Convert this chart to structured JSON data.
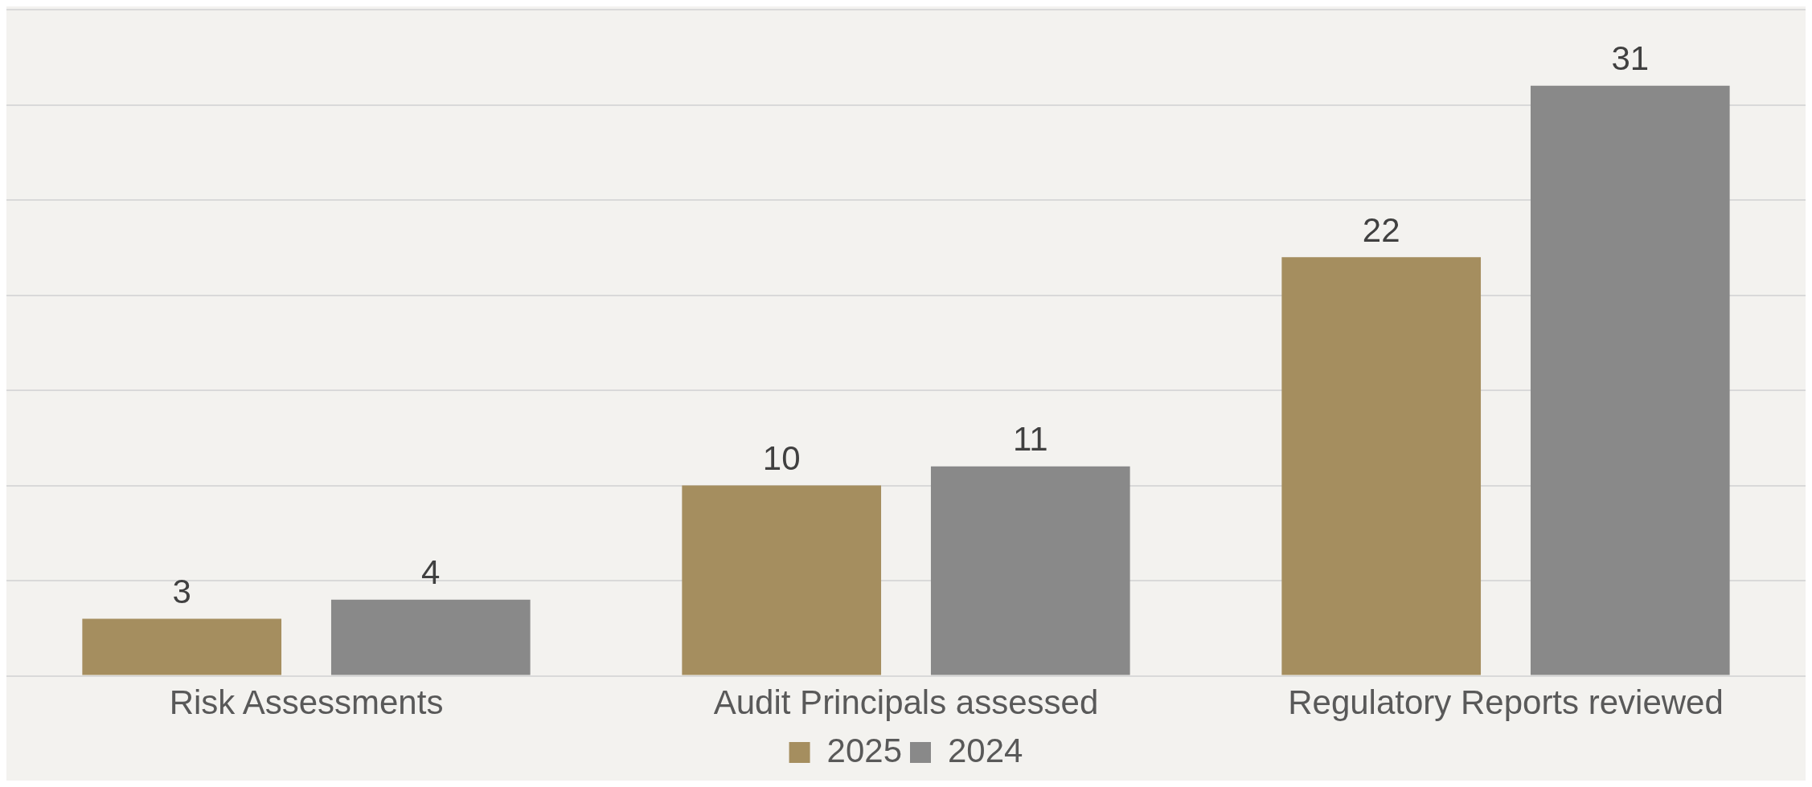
{
  "chart_data": {
    "type": "bar",
    "categories": [
      "Risk Assessments",
      "Audit Principals assessed",
      "Regulatory Reports reviewed"
    ],
    "series": [
      {
        "name": "2025",
        "color": "#a58e5f",
        "values": [
          3,
          10,
          22
        ]
      },
      {
        "name": "2024",
        "color": "#898989",
        "values": [
          4,
          11,
          31
        ]
      }
    ],
    "ylim": [
      0,
      35
    ],
    "yticks": [
      {
        "value": 0,
        "label": null
      },
      {
        "value": 5,
        "label": null
      },
      {
        "value": 10,
        "label": null
      },
      {
        "value": 15,
        "label": null
      },
      {
        "value": 20,
        "label": null
      },
      {
        "value": 25,
        "label": null
      },
      {
        "value": 30,
        "label": null
      },
      {
        "value": 35,
        "label": null
      }
    ],
    "grid": "y",
    "tick_labels": "x",
    "legend": "bottom",
    "data_labels": true
  }
}
